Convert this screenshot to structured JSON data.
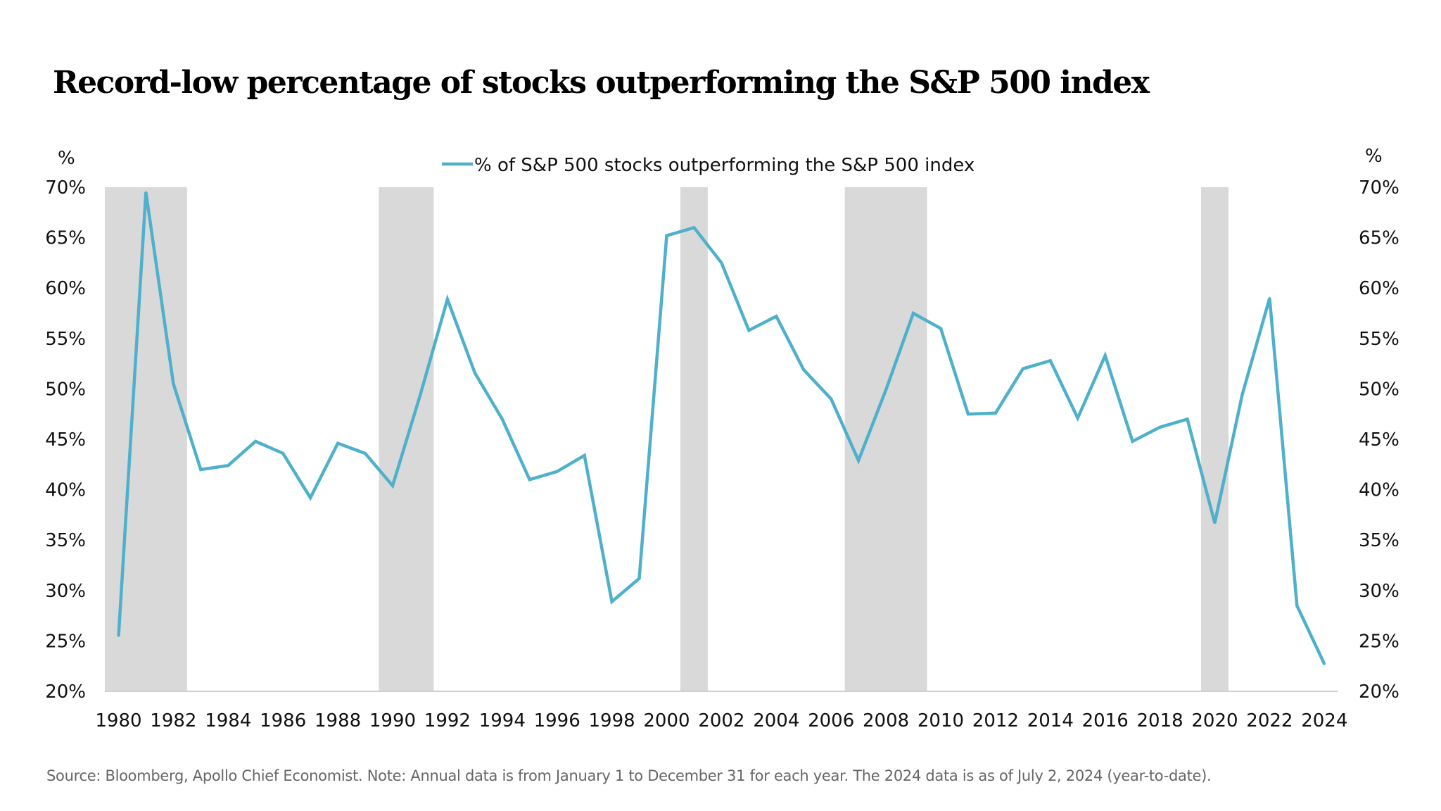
{
  "chart_data": {
    "type": "line",
    "title": "Record-low percentage of stocks outperforming the S&P 500 index",
    "ylabel_left": "%",
    "ylabel_right": "%",
    "ylim": [
      20,
      70
    ],
    "y_ticks": [
      "20%",
      "25%",
      "30%",
      "35%",
      "40%",
      "45%",
      "50%",
      "55%",
      "60%",
      "65%",
      "70%"
    ],
    "y_tick_values": [
      20,
      25,
      30,
      35,
      40,
      45,
      50,
      55,
      60,
      65,
      70
    ],
    "x_ticks": [
      "1980",
      "1982",
      "1984",
      "1986",
      "1988",
      "1990",
      "1992",
      "1994",
      "1996",
      "1998",
      "2000",
      "2002",
      "2004",
      "2006",
      "2008",
      "2010",
      "2012",
      "2014",
      "2016",
      "2018",
      "2020",
      "2022",
      "2024"
    ],
    "x": [
      1980,
      1981,
      1982,
      1983,
      1984,
      1985,
      1986,
      1987,
      1988,
      1989,
      1990,
      1991,
      1992,
      1993,
      1994,
      1995,
      1996,
      1997,
      1998,
      1999,
      2000,
      2001,
      2002,
      2003,
      2004,
      2005,
      2006,
      2007,
      2008,
      2009,
      2010,
      2011,
      2012,
      2013,
      2014,
      2015,
      2016,
      2017,
      2018,
      2019,
      2020,
      2021,
      2022,
      2023,
      2024
    ],
    "series": [
      {
        "name": "% of S&P 500 stocks outperforming the S&P 500 index",
        "color": "#4fb0cc",
        "values": [
          25.5,
          69.5,
          50.5,
          42.0,
          42.4,
          44.8,
          43.6,
          39.2,
          44.6,
          43.6,
          40.4,
          49.3,
          58.9,
          51.6,
          47.0,
          41.0,
          41.8,
          43.4,
          28.9,
          31.2,
          65.2,
          66.0,
          62.5,
          55.8,
          57.2,
          51.9,
          49.0,
          42.9,
          49.9,
          57.5,
          56.0,
          47.5,
          47.6,
          52.0,
          52.8,
          47.1,
          53.3,
          44.8,
          46.2,
          47.0,
          36.7,
          49.4,
          59.0,
          28.5,
          22.7
        ]
      }
    ],
    "shaded_periods": [
      [
        1980,
        1982
      ],
      [
        1990,
        1991
      ],
      [
        2001,
        2001
      ],
      [
        2007,
        2009
      ],
      [
        2020,
        2020
      ]
    ],
    "shade_color": "#d9d9d9",
    "legend_position": "top-center",
    "grid": false
  },
  "source": "Source: Bloomberg, Apollo Chief Economist. Note: Annual data is from January 1 to December 31 for each year. The 2024 data is as of July 2, 2024 (year-to-date)."
}
